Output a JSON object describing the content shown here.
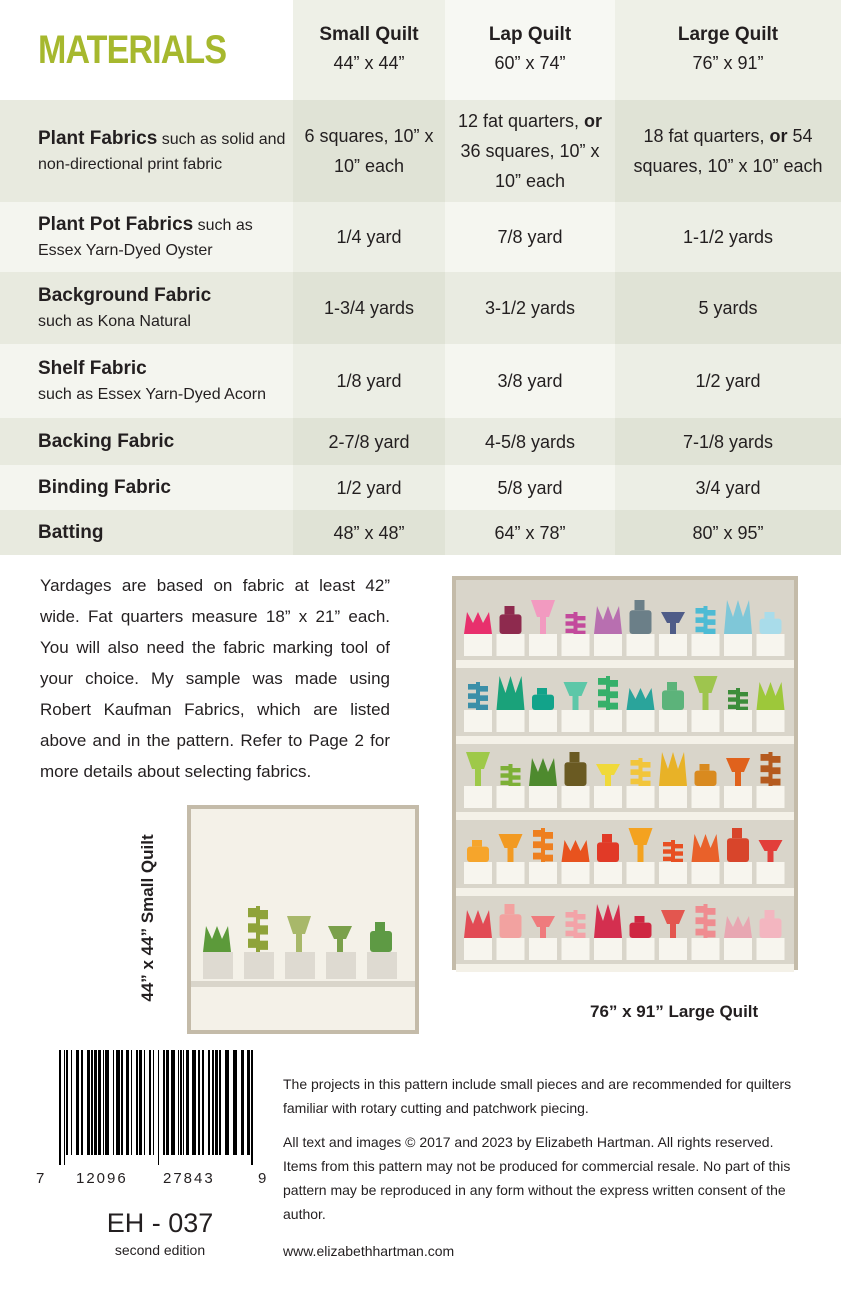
{
  "table": {
    "title": "MATERIALS",
    "columns": [
      {
        "name": "Small Quilt",
        "size": "44” x 44”"
      },
      {
        "name": "Lap Quilt",
        "size": "60” x 74”"
      },
      {
        "name": "Large Quilt",
        "size": "76” x 91”"
      }
    ],
    "rows": [
      {
        "name": "Plant Fabrics",
        "note": " such as solid and non-directional print fabric",
        "cells": [
          "6 squares, 10” x 10” each",
          [
            "12 fat quarters, ",
            "or",
            " 36 squares, 10” x 10” each"
          ],
          [
            "18 fat quarters, ",
            "or",
            " 54 squares, 10” x 10” each"
          ]
        ]
      },
      {
        "name": "Plant Pot Fabrics",
        "note": " such as Essex Yarn-Dyed Oyster",
        "cells": [
          "1/4 yard",
          "7/8 yard",
          "1-1/2 yards"
        ]
      },
      {
        "name": "Background Fabric",
        "note": "such as Kona Natural",
        "cells": [
          "1-3/4 yards",
          "3-1/2 yards",
          "5 yards"
        ]
      },
      {
        "name": "Shelf Fabric",
        "note": "such as Essex Yarn-Dyed Acorn",
        "cells": [
          "1/8 yard",
          "3/8 yard",
          "1/2 yard"
        ]
      },
      {
        "name": "Backing Fabric",
        "cells": [
          "2-7/8 yard",
          "4-5/8 yards",
          "7-1/8 yards"
        ]
      },
      {
        "name": "Binding Fabric",
        "cells": [
          "1/2 yard",
          "5/8 yard",
          "3/4 yard"
        ]
      },
      {
        "name": "Batting",
        "cells": [
          "48” x 48”",
          "64” x 78”",
          "80” x 95”"
        ]
      }
    ]
  },
  "description": "Yardages are based on fabric at least 42” wide. Fat quarters measure 18” x 21” each. You will also need the fabric marking tool of your choice. My sample was made using Robert Kaufman Fabrics, which are listed above and in the pattern. Refer to Page 2 for more details about selecting fabrics.",
  "small_quilt_caption": "44” x 44” Small Quilt",
  "large_quilt_caption": "76” x 91” Large Quilt",
  "barcode": {
    "digits": [
      "7",
      "12096",
      "27843",
      "9"
    ],
    "code": "EH - 037",
    "edition": "second edition"
  },
  "notes": [
    "The projects in this pattern include small pieces and are recommended for quilters familiar with rotary cutting and patchwork piecing.",
    "All text and images © 2017 and 2023 by Elizabeth Hartman. All rights reserved. Items from this pattern may not be produced for commercial resale. No part of this pattern may be reproduced in any form without the express written consent of the author."
  ],
  "url": "www.elizabethhartman.com"
}
